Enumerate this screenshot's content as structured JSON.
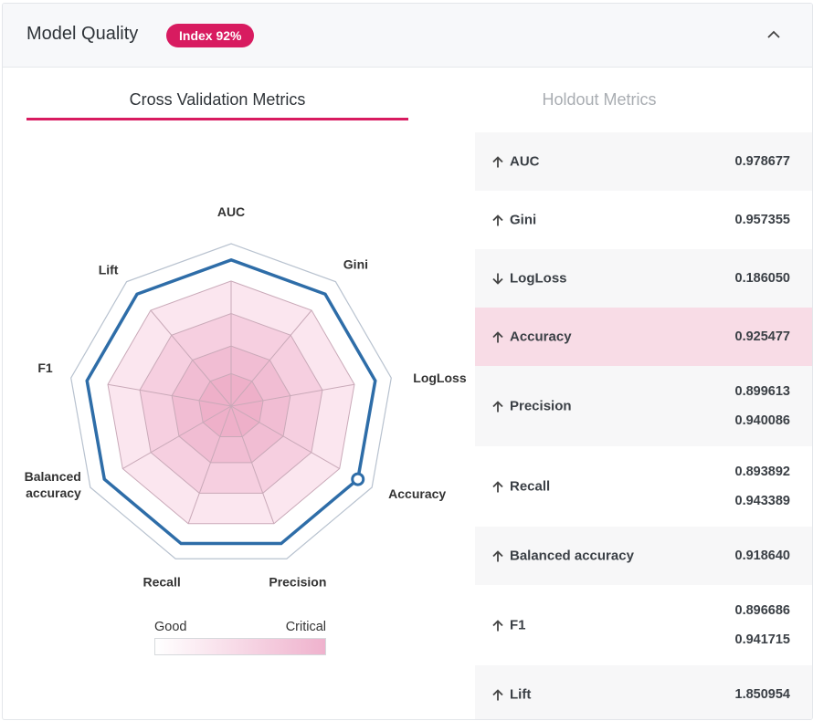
{
  "header": {
    "title": "Model Quality",
    "badge": "Index 92%"
  },
  "tabs": [
    {
      "label": "Cross Validation Metrics",
      "active": true
    },
    {
      "label": "Holdout Metrics",
      "active": false
    }
  ],
  "metrics": [
    {
      "name": "AUC",
      "direction": "up",
      "values": [
        "0.978677"
      ],
      "style": "odd"
    },
    {
      "name": "Gini",
      "direction": "up",
      "values": [
        "0.957355"
      ],
      "style": "even"
    },
    {
      "name": "LogLoss",
      "direction": "down",
      "values": [
        "0.186050"
      ],
      "style": "odd"
    },
    {
      "name": "Accuracy",
      "direction": "up",
      "values": [
        "0.925477"
      ],
      "style": "highlight"
    },
    {
      "name": "Precision",
      "direction": "up",
      "values": [
        "0.899613",
        "0.940086"
      ],
      "style": "odd"
    },
    {
      "name": "Recall",
      "direction": "up",
      "values": [
        "0.893892",
        "0.943389"
      ],
      "style": "even"
    },
    {
      "name": "Balanced accuracy",
      "direction": "up",
      "values": [
        "0.918640"
      ],
      "style": "odd"
    },
    {
      "name": "F1",
      "direction": "up",
      "values": [
        "0.896686",
        "0.941715"
      ],
      "style": "even"
    },
    {
      "name": "Lift",
      "direction": "up",
      "values": [
        "1.850954"
      ],
      "style": "odd"
    }
  ],
  "radar": {
    "axes": [
      "AUC",
      "Gini",
      "LogLoss",
      "Accuracy",
      "Precision",
      "Recall",
      "Balanced accuracy",
      "F1",
      "Lift"
    ],
    "axis_label_lines": [
      [
        "AUC"
      ],
      [
        "Gini"
      ],
      [
        "LogLoss"
      ],
      [
        "Accuracy"
      ],
      [
        "Precision"
      ],
      [
        "Recall"
      ],
      [
        "Balanced",
        "accuracy"
      ],
      [
        "F1"
      ],
      [
        "Lift"
      ]
    ],
    "model_score_fraction": 0.9,
    "highlighted_axis": "Accuracy",
    "line_color": "#2e6da8",
    "band_colors": [
      "#fbe6ef",
      "#f6cfe0",
      "#f1bdd3",
      "#eeb0c9"
    ]
  },
  "legend": {
    "good_label": "Good",
    "critical_label": "Critical"
  }
}
